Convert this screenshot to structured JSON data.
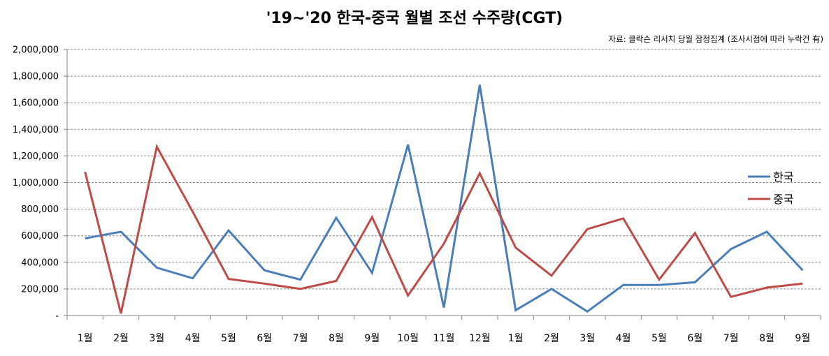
{
  "chart_data": {
    "type": "line",
    "title": "'19~'20 한국-중국 월별 조선 수주량(CGT)",
    "source": "자료: 클락슨 리서치 당월 잠정집계 (조사시점에 따라 누락건 有)",
    "xlabel": "",
    "ylabel": "",
    "categories": [
      "1월",
      "2월",
      "3월",
      "4월",
      "5월",
      "6월",
      "7월",
      "8월",
      "9월",
      "10월",
      "11월",
      "12월",
      "1월",
      "2월",
      "3월",
      "4월",
      "5월",
      "6월",
      "7월",
      "8월",
      "9월"
    ],
    "y_tick_labels": [
      "-",
      "200,000",
      "400,000",
      "600,000",
      "800,000",
      "1,000,000",
      "1,200,000",
      "1,400,000",
      "1,600,000",
      "1,800,000",
      "2,000,000"
    ],
    "ylim": [
      0,
      2000000
    ],
    "grid": true,
    "legend_position": "right",
    "series": [
      {
        "name": "한국",
        "color": "#4a7ebb",
        "values": [
          580000,
          630000,
          360000,
          280000,
          640000,
          340000,
          270000,
          735000,
          320000,
          1285000,
          60000,
          1735000,
          40000,
          200000,
          30000,
          230000,
          230000,
          250000,
          500000,
          630000,
          340000
        ]
      },
      {
        "name": "중국",
        "color": "#be4b48",
        "values": [
          1080000,
          15000,
          1270000,
          780000,
          275000,
          240000,
          200000,
          260000,
          740000,
          150000,
          540000,
          1070000,
          510000,
          300000,
          650000,
          730000,
          270000,
          620000,
          140000,
          210000,
          240000
        ]
      }
    ]
  }
}
